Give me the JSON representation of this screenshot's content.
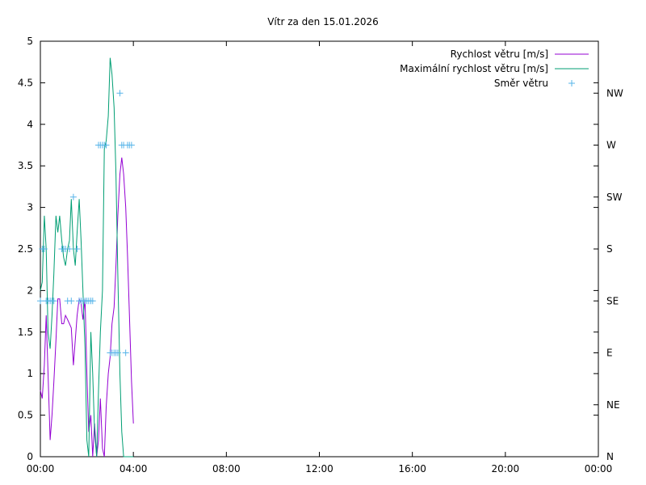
{
  "chart_data": {
    "type": "line",
    "title": "Vítr za den 15.01.2026",
    "xlabel": "",
    "ylabel": "",
    "x_unit": "hours",
    "xlim": [
      0,
      24
    ],
    "ylim": [
      0,
      5
    ],
    "y2lim": [
      0,
      8
    ],
    "x_ticks": [
      {
        "v": 0,
        "label": "00:00"
      },
      {
        "v": 4,
        "label": "04:00"
      },
      {
        "v": 8,
        "label": "08:00"
      },
      {
        "v": 12,
        "label": "12:00"
      },
      {
        "v": 16,
        "label": "16:00"
      },
      {
        "v": 20,
        "label": "20:00"
      },
      {
        "v": 24,
        "label": "00:00"
      }
    ],
    "y_ticks": [
      {
        "v": 0,
        "label": "0"
      },
      {
        "v": 0.5,
        "label": "0.5"
      },
      {
        "v": 1,
        "label": "1"
      },
      {
        "v": 1.5,
        "label": "1.5"
      },
      {
        "v": 2,
        "label": "2"
      },
      {
        "v": 2.5,
        "label": "2.5"
      },
      {
        "v": 3,
        "label": "3"
      },
      {
        "v": 3.5,
        "label": "3.5"
      },
      {
        "v": 4,
        "label": "4"
      },
      {
        "v": 4.5,
        "label": "4.5"
      },
      {
        "v": 5,
        "label": "5"
      }
    ],
    "y2_ticks": [
      {
        "v": 0,
        "label": "N"
      },
      {
        "v": 1,
        "label": "NE"
      },
      {
        "v": 2,
        "label": "E"
      },
      {
        "v": 3,
        "label": "SE"
      },
      {
        "v": 4,
        "label": "S"
      },
      {
        "v": 5,
        "label": "SW"
      },
      {
        "v": 6,
        "label": "W"
      },
      {
        "v": 7,
        "label": "NW"
      }
    ],
    "grid": false,
    "legend_position": "top-right",
    "series": [
      {
        "name": "Rychlost větru [m/s]",
        "color": "#9400d3",
        "style": "line",
        "axis": "y",
        "x": [
          0,
          0.08,
          0.17,
          0.25,
          0.33,
          0.42,
          0.5,
          0.58,
          0.67,
          0.75,
          0.83,
          0.92,
          1.0,
          1.08,
          1.17,
          1.25,
          1.33,
          1.42,
          1.5,
          1.58,
          1.67,
          1.75,
          1.83,
          1.92,
          2.0,
          2.08,
          2.17,
          2.25,
          2.33,
          2.42,
          2.5,
          2.58,
          2.67,
          2.75,
          2.83,
          2.92,
          3.0,
          3.08,
          3.17,
          3.25,
          3.33,
          3.42,
          3.5,
          3.58,
          3.67,
          3.75,
          3.83,
          3.92,
          4.0
        ],
        "y": [
          0.8,
          0.7,
          1.1,
          1.7,
          1.0,
          0.2,
          0.5,
          0.9,
          1.4,
          1.9,
          1.9,
          1.6,
          1.6,
          1.7,
          1.65,
          1.6,
          1.55,
          1.1,
          1.4,
          1.7,
          1.9,
          1.85,
          1.65,
          1.9,
          1.0,
          0.3,
          0.5,
          0.0,
          0.4,
          0.0,
          0.2,
          0.7,
          0.1,
          0.0,
          0.6,
          1.0,
          1.2,
          1.6,
          1.8,
          2.3,
          2.9,
          3.4,
          3.6,
          3.4,
          3.0,
          2.4,
          1.7,
          0.9,
          0.4
        ]
      },
      {
        "name": "Maximální rychlost větru [m/s]",
        "color": "#009e73",
        "style": "line",
        "axis": "y",
        "x": [
          0,
          0.08,
          0.17,
          0.25,
          0.33,
          0.42,
          0.5,
          0.58,
          0.67,
          0.75,
          0.83,
          0.92,
          1.0,
          1.08,
          1.17,
          1.25,
          1.33,
          1.42,
          1.5,
          1.58,
          1.67,
          1.75,
          1.83,
          1.92,
          2.0,
          2.08,
          2.17,
          2.25,
          2.33,
          2.42,
          2.5,
          2.58,
          2.67,
          2.75,
          2.83,
          2.92,
          3.0,
          3.08,
          3.17,
          3.25,
          3.33,
          3.42,
          3.5,
          3.58,
          3.67,
          3.75,
          3.83,
          3.92,
          4.0
        ],
        "y": [
          2.0,
          2.1,
          2.9,
          2.5,
          1.5,
          1.3,
          1.7,
          2.2,
          2.9,
          2.7,
          2.9,
          2.6,
          2.4,
          2.3,
          2.5,
          2.6,
          3.1,
          2.5,
          2.3,
          2.7,
          3.1,
          2.6,
          2.0,
          1.3,
          0.2,
          0.0,
          1.5,
          1.0,
          0.3,
          0.0,
          0.8,
          1.5,
          2.0,
          3.7,
          3.8,
          4.1,
          4.8,
          4.6,
          4.2,
          3.4,
          2.2,
          1.0,
          0.3,
          0.0,
          0.0,
          0.0,
          0.0,
          0.0,
          0.0
        ]
      },
      {
        "name": "Směr větru",
        "color": "#56b4e9",
        "style": "points",
        "axis": "y2",
        "x": [
          0.0,
          0.08,
          0.17,
          0.25,
          0.33,
          0.42,
          0.5,
          0.58,
          0.92,
          1.0,
          1.08,
          1.17,
          1.25,
          1.33,
          1.42,
          1.58,
          1.67,
          1.75,
          1.83,
          1.92,
          2.0,
          2.08,
          2.17,
          2.25,
          2.5,
          2.58,
          2.67,
          2.75,
          2.83,
          3.0,
          3.08,
          3.17,
          3.25,
          3.33,
          3.42,
          3.5,
          3.58,
          3.67,
          3.75,
          3.83,
          3.92
        ],
        "y": [
          3,
          4,
          4,
          3,
          3,
          3,
          3,
          3,
          4,
          4,
          4,
          3,
          4,
          3,
          5,
          4,
          3,
          3,
          3,
          3,
          3,
          3,
          3,
          3,
          6,
          6,
          6,
          6,
          6,
          2,
          2,
          2,
          2,
          2,
          7,
          6,
          6,
          2,
          6,
          6,
          6
        ]
      }
    ]
  }
}
